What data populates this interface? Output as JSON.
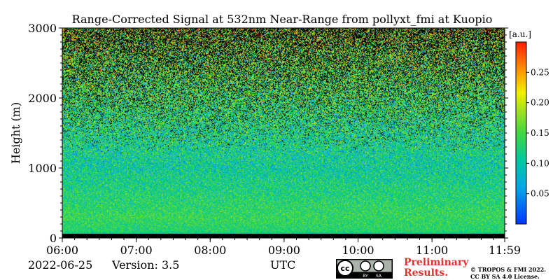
{
  "chart_data": {
    "type": "heatmap",
    "title": "Range-Corrected Signal at 532nm Near-Range from pollyxt_fmi at Kuopio",
    "xlabel": "UTC",
    "ylabel": "Height (m)",
    "x_ticks": [
      "06:00",
      "07:00",
      "08:00",
      "09:00",
      "10:00",
      "11:00",
      "11:59"
    ],
    "x_range": [
      "06:00",
      "11:59"
    ],
    "y_ticks": [
      0,
      1000,
      2000,
      3000
    ],
    "ylim": [
      0,
      3000
    ],
    "colorbar": {
      "unit": "[a.u.]",
      "ticks": [
        0.05,
        0.1,
        0.15,
        0.2,
        0.25
      ],
      "tick_labels": [
        "0.05",
        "0.10",
        "0.15",
        "0.20",
        "0.25"
      ],
      "range": [
        0.0,
        0.3
      ],
      "colormap": "jet"
    },
    "profile_description_mean_by_height": [
      {
        "height": 0,
        "value": 0.0
      },
      {
        "height": 80,
        "value": 0.13
      },
      {
        "height": 300,
        "value": 0.14
      },
      {
        "height": 1000,
        "value": 0.11
      },
      {
        "height": 1500,
        "value": 0.12
      },
      {
        "height": 2000,
        "value": 0.14
      },
      {
        "height": 2500,
        "value": 0.16
      },
      {
        "height": 3000,
        "value": 0.19
      }
    ],
    "grid": false
  },
  "footer": {
    "date": "2022-06-25",
    "version": "Version: 3.5",
    "axis_unit": "UTC",
    "preliminary_line1": "Preliminary",
    "preliminary_line2": "Results.",
    "copyright_line1": "© TROPOS & FMI 2022.",
    "copyright_line2": "CC BY SA 4.0 License."
  },
  "badge": {
    "cc": "cc",
    "by": "BY",
    "sa": "SA"
  },
  "colors": {
    "preliminary": "#e53030",
    "background": "#ffffff",
    "frame": "#000000"
  }
}
